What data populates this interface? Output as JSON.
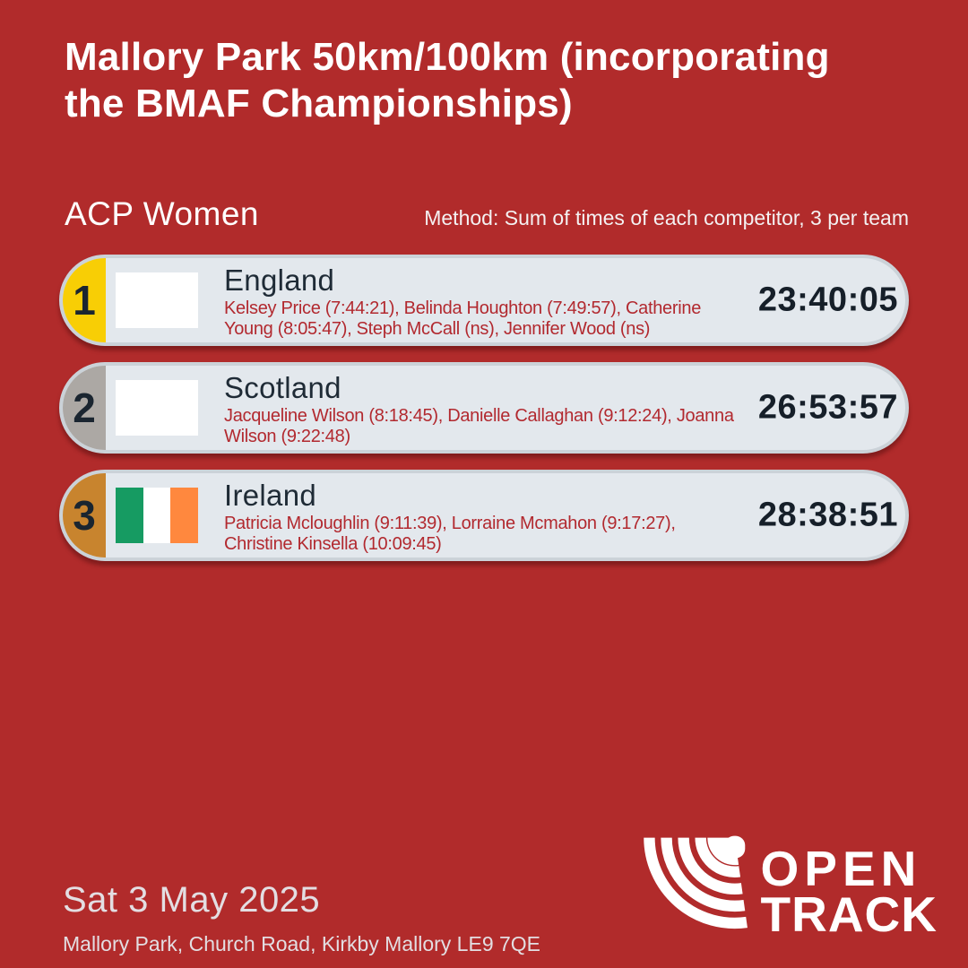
{
  "header": {
    "title": "Mallory Park 50km/100km (incorporating\nthe BMAF Championships)"
  },
  "section": {
    "title": "ACP Women",
    "method": "Method: Sum of times of each competitor, 3 per team"
  },
  "results": {
    "rows": [
      {
        "rank": "1",
        "team": "England",
        "competitors": "Kelsey Price (7:44:21), Belinda Houghton (7:49:57), Catherine\nYoung (8:05:47), Steph McCall (ns), Jennifer Wood (ns)",
        "time": "23:40:05",
        "medal_color": "#F8CE05",
        "flag_name": "england-flag",
        "flag_colors": [
          "#FFFFFF"
        ]
      },
      {
        "rank": "2",
        "team": "Scotland",
        "competitors": "Jacqueline Wilson (8:18:45), Danielle Callaghan (9:12:24), Joanna\nWilson (9:22:48)",
        "time": "26:53:57",
        "medal_color": "#ACA8A4",
        "flag_name": "scotland-flag",
        "flag_colors": [
          "#FFFFFF"
        ]
      },
      {
        "rank": "3",
        "team": "Ireland",
        "competitors": "Patricia Mcloughlin (9:11:39), Lorraine Mcmahon (9:17:27),\nChristine Kinsella (10:09:45)",
        "time": "28:38:51",
        "medal_color": "#C8842E",
        "flag_name": "ireland-flag",
        "flag_colors": [
          "#169B62",
          "#FFFFFF",
          "#FF883E"
        ]
      }
    ]
  },
  "footer": {
    "date": "Sat 3 May 2025",
    "venue": "Mallory Park, Church Road, Kirkby Mallory LE9 7QE"
  },
  "logo": {
    "icon": "opentrack-arcs-icon",
    "line1": "OPEN",
    "line2": "TRACK"
  },
  "colors": {
    "background": "#B12B2B",
    "pill_fill": "#E3E8ED",
    "pill_border": "#CBD2D8",
    "competitor_text": "#B2292F",
    "dark_text": "#1A2530",
    "gold": "#F8CE05",
    "silver": "#ACA8A4",
    "bronze": "#C8842E",
    "white": "#FFFFFF"
  }
}
